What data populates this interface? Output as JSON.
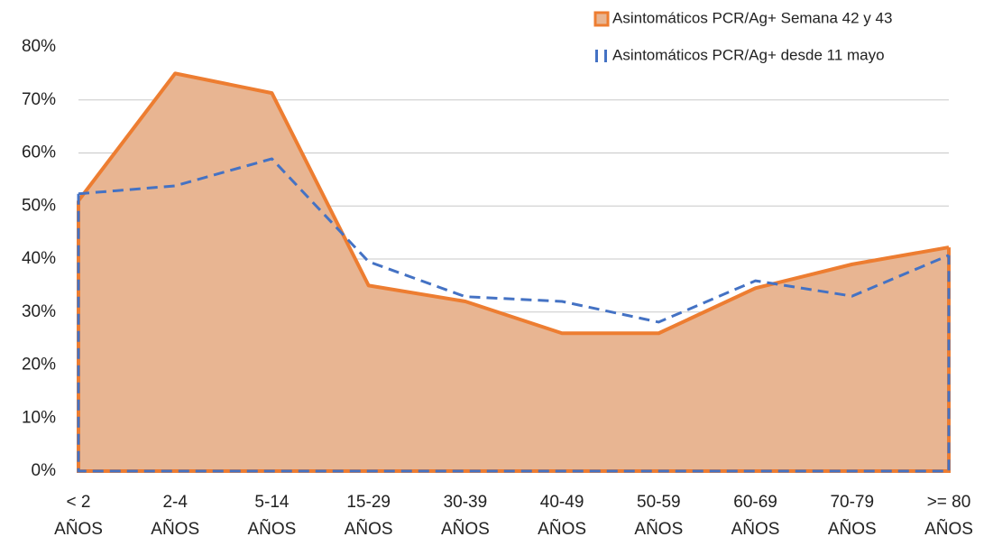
{
  "chart_data": {
    "type": "area",
    "categories": [
      [
        "< 2",
        "AÑOS"
      ],
      [
        "2-4",
        "AÑOS"
      ],
      [
        "5-14",
        "AÑOS"
      ],
      [
        "15-29",
        "AÑOS"
      ],
      [
        "30-39",
        "AÑOS"
      ],
      [
        "40-49",
        "AÑOS"
      ],
      [
        "50-59",
        "AÑOS"
      ],
      [
        "60-69",
        "AÑOS"
      ],
      [
        "70-79",
        "AÑOS"
      ],
      [
        ">= 80",
        "AÑOS"
      ]
    ],
    "series": [
      {
        "name": "Asintomáticos PCR/Ag+ Semana 42 y 43",
        "color": "#ed7d31",
        "fill": "#e8b592",
        "style": "solid",
        "values": [
          51,
          75,
          71.3,
          35,
          32,
          26,
          26,
          34.5,
          39,
          42.2
        ]
      },
      {
        "name": "Asintomáticos PCR/Ag+ desde 11 mayo",
        "color": "#4472c4",
        "style": "dashed",
        "values": [
          52.3,
          53.8,
          58.9,
          39.5,
          32.9,
          32,
          28.1,
          35.9,
          33,
          40.7
        ]
      }
    ],
    "ylim": [
      0,
      80
    ],
    "yticks": [
      {
        "value": 0,
        "label": "0%"
      },
      {
        "value": 10,
        "label": "10%"
      },
      {
        "value": 20,
        "label": "20%"
      },
      {
        "value": 30,
        "label": "30%"
      },
      {
        "value": 40,
        "label": "40%"
      },
      {
        "value": 50,
        "label": "50%"
      },
      {
        "value": 60,
        "label": "60%"
      },
      {
        "value": 70,
        "label": "70%"
      },
      {
        "value": 80,
        "label": "80%"
      }
    ],
    "grid": true
  }
}
